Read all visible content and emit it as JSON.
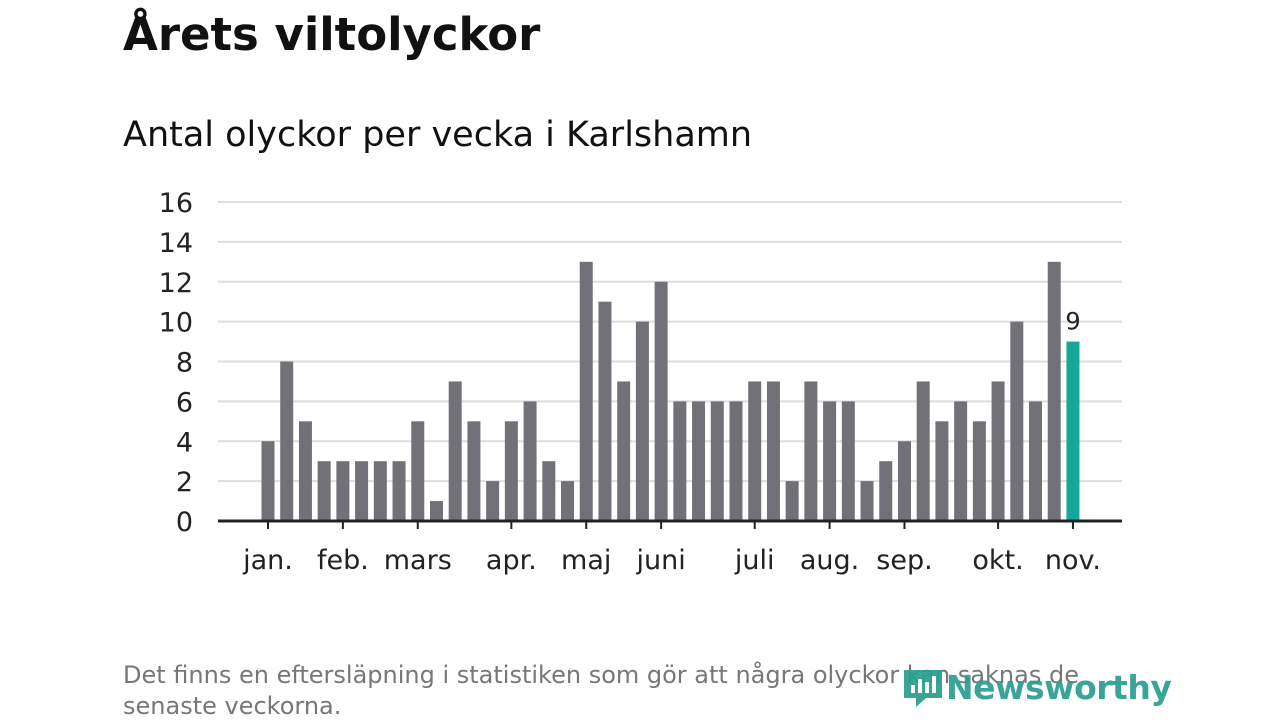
{
  "title": "Årets viltolyckor",
  "subtitle": "Antal olyckor per vecka i Karlshamn",
  "note": "Det finns en eftersläpning i statistiken som gör att några olyckor kan saknas de senaste veckorna.",
  "brand": {
    "name": "Newsworthy",
    "icon": "newsworthy-logo-icon"
  },
  "colors": {
    "bar": "#727177",
    "highlight": "#13a89a",
    "grid": "#dddddd",
    "axis": "#222222",
    "text": "#222222"
  },
  "chart_data": {
    "type": "bar",
    "title": "Årets viltolyckor",
    "subtitle": "Antal olyckor per vecka i Karlshamn",
    "xlabel": "",
    "ylabel": "",
    "ylim": [
      0,
      16
    ],
    "yticks": [
      0,
      2,
      4,
      6,
      8,
      10,
      12,
      14,
      16
    ],
    "grid": true,
    "weeks": [
      1,
      2,
      3,
      4,
      5,
      6,
      7,
      8,
      9,
      10,
      11,
      12,
      13,
      14,
      15,
      16,
      17,
      18,
      19,
      20,
      21,
      22,
      23,
      24,
      25,
      26,
      27,
      28,
      29,
      30,
      31,
      32,
      33,
      34,
      35,
      36,
      37,
      38,
      39,
      40,
      41,
      42,
      43,
      44
    ],
    "values": [
      4,
      8,
      5,
      3,
      3,
      3,
      3,
      3,
      5,
      1,
      7,
      5,
      2,
      5,
      6,
      3,
      2,
      13,
      11,
      7,
      10,
      12,
      6,
      6,
      6,
      6,
      7,
      7,
      2,
      7,
      6,
      6,
      2,
      3,
      4,
      7,
      5,
      6,
      5,
      7,
      10,
      6,
      13,
      9
    ],
    "highlight_index": 43,
    "highlight_label": "9",
    "month_ticks": [
      {
        "label": "jan.",
        "position": 1
      },
      {
        "label": "feb.",
        "position": 5
      },
      {
        "label": "mars",
        "position": 9
      },
      {
        "label": "apr.",
        "position": 14
      },
      {
        "label": "maj",
        "position": 18
      },
      {
        "label": "juni",
        "position": 22
      },
      {
        "label": "juli",
        "position": 27
      },
      {
        "label": "aug.",
        "position": 31
      },
      {
        "label": "sep.",
        "position": 35
      },
      {
        "label": "okt.",
        "position": 40
      },
      {
        "label": "nov.",
        "position": 44
      }
    ]
  }
}
